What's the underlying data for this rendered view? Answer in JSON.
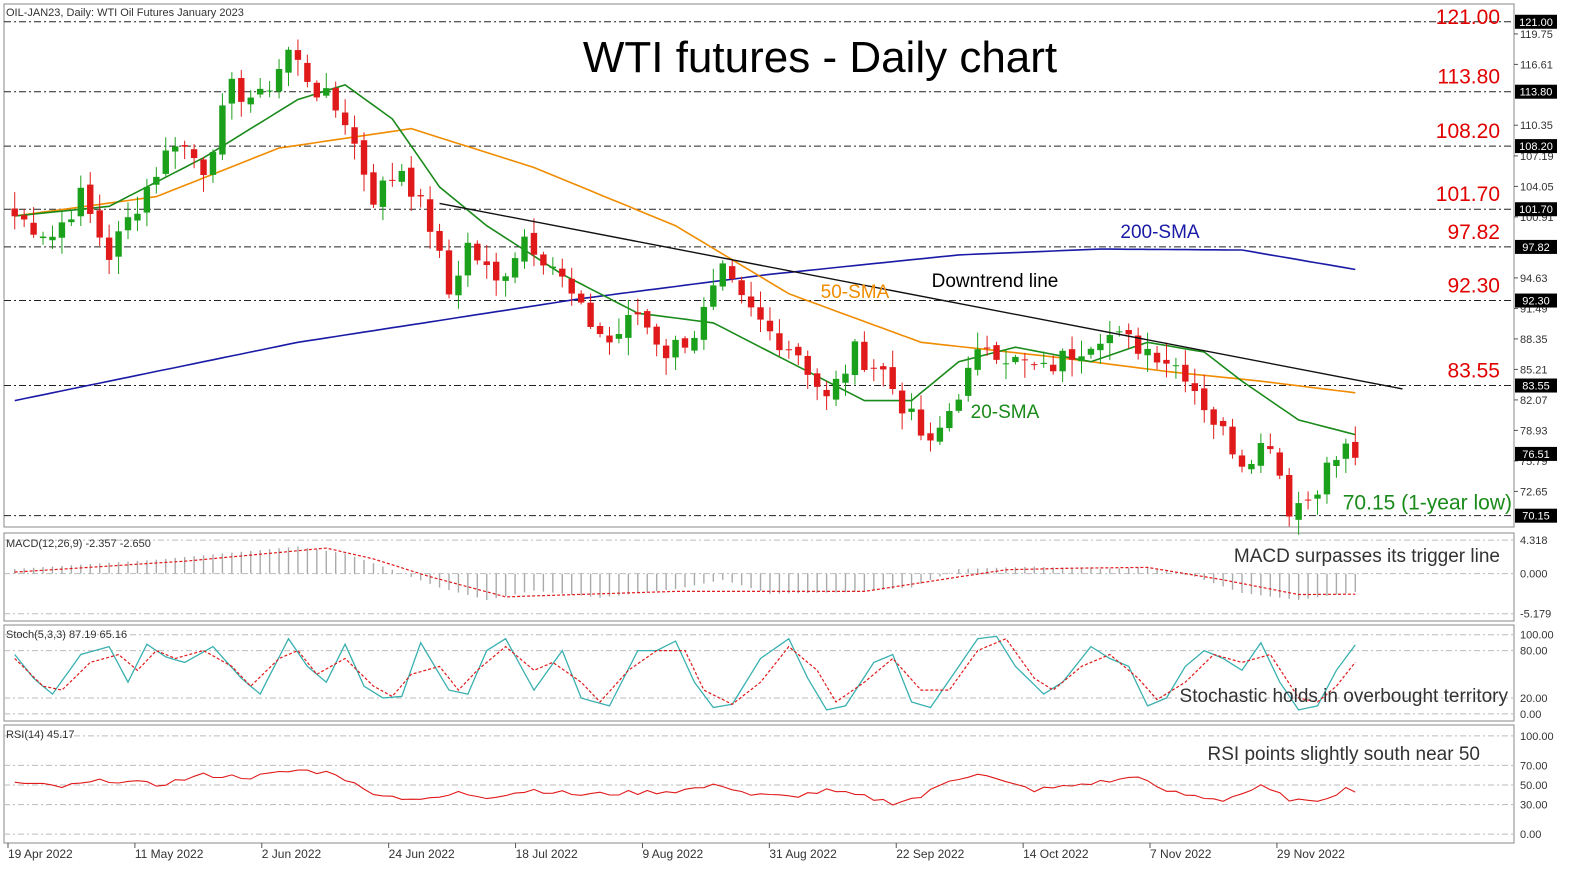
{
  "chart_data": {
    "type": "candlestick",
    "title": "WTI futures - Daily chart",
    "instrument_label": "OIL-JAN23, Daily:  WTI Oil Futures January 2023",
    "ylim": [
      69.5,
      121.8
    ],
    "x_tick_labels": [
      "19 Apr 2022",
      "11 May 2022",
      "2 Jun 2022",
      "24 Jun 2022",
      "18 Jul 2022",
      "9 Aug 2022",
      "31 Aug 2022",
      "22 Sep 2022",
      "14 Oct 2022",
      "7 Nov 2022",
      "29 Nov 2022"
    ],
    "y_tick_labels": [
      "119.75",
      "116.61",
      "110.35",
      "107.19",
      "104.05",
      "100.91",
      "94.63",
      "91.49",
      "88.35",
      "85.21",
      "82.07",
      "78.93",
      "75.79",
      "72.65"
    ],
    "y_tick_values": [
      119.75,
      116.61,
      110.35,
      107.19,
      104.05,
      100.91,
      94.63,
      91.49,
      88.35,
      85.21,
      82.07,
      78.93,
      75.79,
      72.65
    ],
    "levels": [
      {
        "label": "121.00",
        "value": 121.0
      },
      {
        "label": "113.80",
        "value": 113.8
      },
      {
        "label": "108.20",
        "value": 108.2
      },
      {
        "label": "101.70",
        "value": 101.7
      },
      {
        "label": "97.82",
        "value": 97.82
      },
      {
        "label": "92.30",
        "value": 92.3
      },
      {
        "label": "83.55",
        "value": 83.55
      },
      {
        "label": "70.15 (1-year low)",
        "value": 70.15
      }
    ],
    "price_box_labels": [
      {
        "label": "121.00",
        "value": 121.0
      },
      {
        "label": "113.80",
        "value": 113.8
      },
      {
        "label": "108.20",
        "value": 108.2
      },
      {
        "label": "101.70",
        "value": 101.7
      },
      {
        "label": "97.82",
        "value": 97.82
      },
      {
        "label": "92.30",
        "value": 92.3
      },
      {
        "label": "83.55",
        "value": 83.55
      },
      {
        "label": "76.51",
        "value": 76.51
      },
      {
        "label": "70.15",
        "value": 70.15
      }
    ],
    "close_anchors": [
      [
        0,
        101
      ],
      [
        4,
        99
      ],
      [
        7,
        103
      ],
      [
        10,
        97
      ],
      [
        14,
        104
      ],
      [
        17,
        109
      ],
      [
        20,
        106
      ],
      [
        23,
        114
      ],
      [
        26,
        113
      ],
      [
        29,
        118
      ],
      [
        32,
        114
      ],
      [
        35,
        111
      ],
      [
        38,
        103
      ],
      [
        41,
        106
      ],
      [
        44,
        100
      ],
      [
        46,
        93
      ],
      [
        48,
        98
      ],
      [
        51,
        94
      ],
      [
        54,
        99
      ],
      [
        57,
        96
      ],
      [
        60,
        91
      ],
      [
        63,
        88
      ],
      [
        66,
        91
      ],
      [
        69,
        87
      ],
      [
        72,
        89
      ],
      [
        75,
        95
      ],
      [
        77,
        92
      ],
      [
        80,
        89
      ],
      [
        83,
        87
      ],
      [
        86,
        82
      ],
      [
        89,
        87
      ],
      [
        92,
        85
      ],
      [
        95,
        80
      ],
      [
        97,
        77
      ],
      [
        100,
        83
      ],
      [
        103,
        88
      ],
      [
        106,
        86
      ],
      [
        109,
        85
      ],
      [
        112,
        87
      ],
      [
        115,
        89
      ],
      [
        118,
        88
      ],
      [
        121,
        87
      ],
      [
        124,
        85
      ],
      [
        127,
        80
      ],
      [
        130,
        76
      ],
      [
        133,
        78
      ],
      [
        135,
        71
      ],
      [
        137,
        72
      ],
      [
        139,
        75
      ],
      [
        141,
        77
      ],
      [
        142,
        76.5
      ]
    ],
    "series": [
      {
        "name": "200-SMA",
        "color": "#1a1aa6",
        "anchors": [
          [
            0,
            82
          ],
          [
            30,
            88
          ],
          [
            60,
            92.5
          ],
          [
            80,
            95
          ],
          [
            100,
            97
          ],
          [
            115,
            97.6
          ],
          [
            130,
            97.5
          ],
          [
            142,
            95.5
          ]
        ]
      },
      {
        "name": "50-SMA",
        "color": "#f08c00",
        "anchors": [
          [
            0,
            101
          ],
          [
            15,
            103
          ],
          [
            28,
            108
          ],
          [
            42,
            110
          ],
          [
            55,
            106
          ],
          [
            70,
            100
          ],
          [
            82,
            93
          ],
          [
            96,
            88
          ],
          [
            110,
            86.5
          ],
          [
            122,
            85
          ],
          [
            132,
            84
          ],
          [
            142,
            82.8
          ]
        ]
      },
      {
        "name": "20-SMA",
        "color": "#1a8a1a",
        "anchors": [
          [
            0,
            101
          ],
          [
            10,
            102
          ],
          [
            20,
            107
          ],
          [
            30,
            113
          ],
          [
            35,
            114.5
          ],
          [
            40,
            111
          ],
          [
            45,
            104
          ],
          [
            50,
            100
          ],
          [
            58,
            95
          ],
          [
            66,
            91
          ],
          [
            74,
            90
          ],
          [
            82,
            86
          ],
          [
            90,
            82
          ],
          [
            95,
            82
          ],
          [
            100,
            86
          ],
          [
            106,
            87.5
          ],
          [
            114,
            86
          ],
          [
            120,
            88
          ],
          [
            126,
            87
          ],
          [
            130,
            84
          ],
          [
            136,
            80
          ],
          [
            142,
            78.5
          ]
        ]
      }
    ],
    "trendline": {
      "name": "Downtrend line",
      "from": [
        45,
        102.3
      ],
      "to": [
        147,
        83.2
      ]
    },
    "annotations": {
      "sma200": "200-SMA",
      "sma50": "50-SMA",
      "sma20": "20-SMA",
      "downtrend": "Downtrend line"
    },
    "macd": {
      "header": "MACD(12,26,9) -2.357 -2.650",
      "annotation": "MACD surpasses its trigger line",
      "ylim": [
        -5.6,
        4.6
      ],
      "tick_labels": [
        "4.318",
        "0.000",
        "-5.179"
      ],
      "tick_values": [
        4.318,
        0.0,
        -5.179
      ],
      "hist_anchors": [
        [
          0,
          0.6
        ],
        [
          15,
          1.8
        ],
        [
          30,
          3.5
        ],
        [
          35,
          2.6
        ],
        [
          40,
          0.5
        ],
        [
          45,
          -1.8
        ],
        [
          50,
          -3.4
        ],
        [
          55,
          -2.2
        ],
        [
          62,
          -3.1
        ],
        [
          70,
          -2.0
        ],
        [
          75,
          -0.8
        ],
        [
          80,
          -2.6
        ],
        [
          88,
          -2.4
        ],
        [
          95,
          -1.8
        ],
        [
          100,
          0.6
        ],
        [
          108,
          0.9
        ],
        [
          115,
          0.6
        ],
        [
          120,
          0.8
        ],
        [
          125,
          -0.4
        ],
        [
          130,
          -2.5
        ],
        [
          136,
          -3.4
        ],
        [
          142,
          -2.357
        ]
      ],
      "signal_anchors": [
        [
          0,
          0.2
        ],
        [
          18,
          1.6
        ],
        [
          33,
          3.3
        ],
        [
          38,
          1.9
        ],
        [
          44,
          -0.4
        ],
        [
          52,
          -3.0
        ],
        [
          62,
          -2.6
        ],
        [
          70,
          -2.3
        ],
        [
          80,
          -2.3
        ],
        [
          90,
          -2.3
        ],
        [
          98,
          -0.8
        ],
        [
          105,
          0.5
        ],
        [
          112,
          0.7
        ],
        [
          120,
          0.8
        ],
        [
          128,
          -0.8
        ],
        [
          136,
          -2.7
        ],
        [
          142,
          -2.65
        ]
      ]
    },
    "stoch": {
      "header": "Stoch(5,3,3) 87.19 65.16",
      "annotation": "Stochastic holds in overbought territory",
      "ylim": [
        -4,
        106
      ],
      "tick_labels": [
        "100.00",
        "80.00",
        "20.00",
        "0.00"
      ],
      "tick_values": [
        100,
        80,
        20,
        0
      ],
      "k_anchors": [
        [
          0,
          75
        ],
        [
          2,
          45
        ],
        [
          4,
          25
        ],
        [
          7,
          75
        ],
        [
          10,
          85
        ],
        [
          12,
          40
        ],
        [
          14,
          88
        ],
        [
          16,
          72
        ],
        [
          18,
          65
        ],
        [
          21,
          85
        ],
        [
          24,
          45
        ],
        [
          26,
          25
        ],
        [
          29,
          95
        ],
        [
          31,
          60
        ],
        [
          33,
          40
        ],
        [
          35,
          88
        ],
        [
          37,
          35
        ],
        [
          39,
          20
        ],
        [
          41,
          22
        ],
        [
          43,
          90
        ],
        [
          46,
          30
        ],
        [
          48,
          25
        ],
        [
          50,
          80
        ],
        [
          52,
          95
        ],
        [
          55,
          30
        ],
        [
          58,
          80
        ],
        [
          60,
          20
        ],
        [
          63,
          10
        ],
        [
          66,
          80
        ],
        [
          68,
          80
        ],
        [
          70,
          92
        ],
        [
          72,
          40
        ],
        [
          74,
          8
        ],
        [
          76,
          12
        ],
        [
          79,
          70
        ],
        [
          82,
          95
        ],
        [
          84,
          45
        ],
        [
          86,
          5
        ],
        [
          88,
          10
        ],
        [
          91,
          65
        ],
        [
          93,
          75
        ],
        [
          95,
          15
        ],
        [
          97,
          8
        ],
        [
          100,
          60
        ],
        [
          102,
          95
        ],
        [
          104,
          98
        ],
        [
          106,
          60
        ],
        [
          109,
          25
        ],
        [
          111,
          40
        ],
        [
          114,
          85
        ],
        [
          116,
          70
        ],
        [
          118,
          60
        ],
        [
          120,
          10
        ],
        [
          122,
          20
        ],
        [
          124,
          60
        ],
        [
          126,
          80
        ],
        [
          128,
          70
        ],
        [
          130,
          55
        ],
        [
          132,
          90
        ],
        [
          134,
          40
        ],
        [
          136,
          5
        ],
        [
          138,
          10
        ],
        [
          140,
          55
        ],
        [
          142,
          87.19
        ]
      ],
      "d_anchors": [
        [
          0,
          70
        ],
        [
          3,
          35
        ],
        [
          5,
          30
        ],
        [
          8,
          65
        ],
        [
          11,
          75
        ],
        [
          13,
          55
        ],
        [
          15,
          80
        ],
        [
          17,
          70
        ],
        [
          20,
          80
        ],
        [
          23,
          60
        ],
        [
          25,
          35
        ],
        [
          28,
          70
        ],
        [
          30,
          80
        ],
        [
          32,
          50
        ],
        [
          35,
          70
        ],
        [
          38,
          35
        ],
        [
          40,
          22
        ],
        [
          42,
          50
        ],
        [
          45,
          60
        ],
        [
          47,
          30
        ],
        [
          49,
          55
        ],
        [
          52,
          85
        ],
        [
          55,
          55
        ],
        [
          57,
          65
        ],
        [
          60,
          40
        ],
        [
          62,
          15
        ],
        [
          65,
          55
        ],
        [
          68,
          80
        ],
        [
          71,
          80
        ],
        [
          73,
          30
        ],
        [
          76,
          12
        ],
        [
          79,
          40
        ],
        [
          82,
          85
        ],
        [
          85,
          55
        ],
        [
          87,
          15
        ],
        [
          90,
          40
        ],
        [
          93,
          70
        ],
        [
          96,
          30
        ],
        [
          99,
          30
        ],
        [
          102,
          80
        ],
        [
          105,
          95
        ],
        [
          108,
          45
        ],
        [
          110,
          30
        ],
        [
          113,
          60
        ],
        [
          116,
          75
        ],
        [
          119,
          45
        ],
        [
          121,
          18
        ],
        [
          124,
          40
        ],
        [
          127,
          75
        ],
        [
          130,
          65
        ],
        [
          133,
          75
        ],
        [
          136,
          20
        ],
        [
          138,
          15
        ],
        [
          140,
          35
        ],
        [
          142,
          65.16
        ]
      ]
    },
    "rsi": {
      "header": "RSI(14) 45.17",
      "annotation": "RSI points slightly south near 50",
      "ylim": [
        -4,
        106
      ],
      "tick_labels": [
        "100.00",
        "70.00",
        "50.00",
        "30.00",
        "0.00"
      ],
      "tick_values": [
        100,
        70,
        50,
        30,
        0
      ],
      "anchors": [
        [
          0,
          52
        ],
        [
          5,
          48
        ],
        [
          10,
          55
        ],
        [
          15,
          50
        ],
        [
          20,
          60
        ],
        [
          25,
          58
        ],
        [
          30,
          65
        ],
        [
          34,
          62
        ],
        [
          37,
          45
        ],
        [
          40,
          38
        ],
        [
          44,
          35
        ],
        [
          47,
          42
        ],
        [
          50,
          38
        ],
        [
          55,
          45
        ],
        [
          60,
          40
        ],
        [
          65,
          42
        ],
        [
          70,
          44
        ],
        [
          75,
          50
        ],
        [
          78,
          40
        ],
        [
          82,
          38
        ],
        [
          86,
          44
        ],
        [
          90,
          38
        ],
        [
          93,
          32
        ],
        [
          96,
          38
        ],
        [
          99,
          55
        ],
        [
          102,
          62
        ],
        [
          105,
          52
        ],
        [
          108,
          45
        ],
        [
          111,
          48
        ],
        [
          114,
          52
        ],
        [
          117,
          55
        ],
        [
          119,
          60
        ],
        [
          121,
          46
        ],
        [
          124,
          40
        ],
        [
          128,
          35
        ],
        [
          132,
          48
        ],
        [
          135,
          36
        ],
        [
          137,
          32
        ],
        [
          139,
          38
        ],
        [
          141,
          46
        ],
        [
          142,
          45.17
        ]
      ]
    }
  }
}
